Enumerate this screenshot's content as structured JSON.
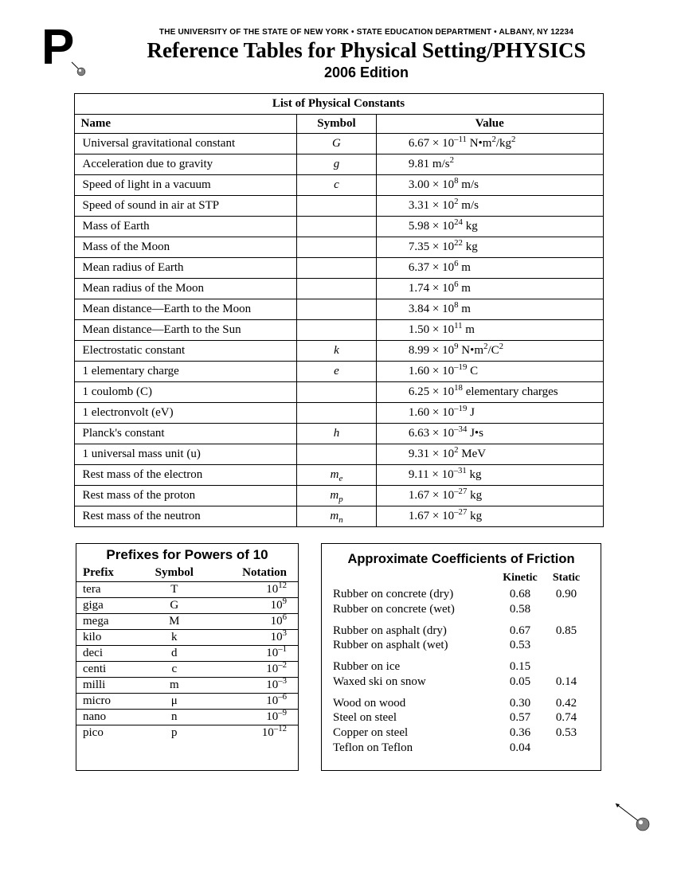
{
  "header": {
    "dept": "THE UNIVERSITY OF THE STATE OF NEW YORK • STATE EDUCATION DEPARTMENT • ALBANY, NY  12234",
    "title": "Reference Tables for Physical Setting/PHYSICS",
    "edition": "2006 Edition"
  },
  "constants": {
    "title": "List of Physical Constants",
    "columns": [
      "Name",
      "Symbol",
      "Value"
    ],
    "rows": [
      {
        "name": "Universal gravitational constant",
        "symbol": "G",
        "value": "6.67 × 10<span class='sup'>–11</span> N•m<span class='sup'>2</span>/kg<span class='sup'>2</span>"
      },
      {
        "name": "Acceleration due to gravity",
        "symbol": "g",
        "value": "9.81 m/s<span class='sup'>2</span>"
      },
      {
        "name": "Speed of light in a vacuum",
        "symbol": "c",
        "value": "3.00 × 10<span class='sup'>8</span> m/s"
      },
      {
        "name": "Speed of sound in air at STP",
        "symbol": "",
        "value": "3.31 × 10<span class='sup'>2</span> m/s"
      },
      {
        "name": "Mass of Earth",
        "symbol": "",
        "value": "5.98 × 10<span class='sup'>24</span> kg"
      },
      {
        "name": "Mass of the Moon",
        "symbol": "",
        "value": "7.35 × 10<span class='sup'>22</span> kg"
      },
      {
        "name": "Mean radius of Earth",
        "symbol": "",
        "value": "6.37 × 10<span class='sup'>6</span> m"
      },
      {
        "name": "Mean radius of the Moon",
        "symbol": "",
        "value": "1.74 × 10<span class='sup'>6</span> m"
      },
      {
        "name": "Mean distance—Earth to the Moon",
        "symbol": "",
        "value": "3.84 × 10<span class='sup'>8</span> m"
      },
      {
        "name": "Mean distance—Earth to the Sun",
        "symbol": "",
        "value": "1.50 × 10<span class='sup'>11</span> m"
      },
      {
        "name": "Electrostatic constant",
        "symbol": "k",
        "value": "8.99 × 10<span class='sup'>9</span> N•m<span class='sup'>2</span>/C<span class='sup'>2</span>"
      },
      {
        "name": "1 elementary charge",
        "symbol": "e",
        "value": "1.60 × 10<span class='sup'>–19</span> C"
      },
      {
        "name": "1 coulomb (C)",
        "symbol": "",
        "value": "6.25 × 10<span class='sup'>18</span> elementary charges"
      },
      {
        "name": "1 electronvolt (eV)",
        "symbol": "",
        "value": "1.60 × 10<span class='sup'>–19</span> J"
      },
      {
        "name": "Planck's constant",
        "symbol": "h",
        "value": "6.63 × 10<span class='sup'>–34</span> J•s"
      },
      {
        "name": "1 universal mass unit (u)",
        "symbol": "",
        "value": "9.31 × 10<span class='sup'>2</span> MeV"
      },
      {
        "name": "Rest mass of the electron",
        "symbol": "m<span class='sub'>e</span>",
        "value": "9.11 × 10<span class='sup'>–31</span> kg"
      },
      {
        "name": "Rest mass of the proton",
        "symbol": "m<span class='sub'>p</span>",
        "value": "1.67 × 10<span class='sup'>–27</span> kg"
      },
      {
        "name": "Rest mass of the neutron",
        "symbol": "m<span class='sub'>n</span>",
        "value": "1.67 × 10<span class='sup'>–27</span> kg"
      }
    ]
  },
  "prefixes": {
    "title": "Prefixes for Powers of 10",
    "columns": [
      "Prefix",
      "Symbol",
      "Notation"
    ],
    "rows": [
      {
        "prefix": "tera",
        "symbol": "T",
        "notation": "10<span class='sup'>12</span>"
      },
      {
        "prefix": "giga",
        "symbol": "G",
        "notation": "10<span class='sup'>9</span>"
      },
      {
        "prefix": "mega",
        "symbol": "M",
        "notation": "10<span class='sup'>6</span>"
      },
      {
        "prefix": "kilo",
        "symbol": "k",
        "notation": "10<span class='sup'>3</span>"
      },
      {
        "prefix": "deci",
        "symbol": "d",
        "notation": "10<span class='sup'>–1</span>"
      },
      {
        "prefix": "centi",
        "symbol": "c",
        "notation": "10<span class='sup'>–2</span>"
      },
      {
        "prefix": "milli",
        "symbol": "m",
        "notation": "10<span class='sup'>–3</span>"
      },
      {
        "prefix": "micro",
        "symbol": "μ",
        "notation": "10<span class='sup'>–6</span>"
      },
      {
        "prefix": "nano",
        "symbol": "n",
        "notation": "10<span class='sup'>–9</span>"
      },
      {
        "prefix": "pico",
        "symbol": "p",
        "notation": "10<span class='sup'>–12</span>"
      }
    ]
  },
  "friction": {
    "title": "Approximate Coefficients of Friction",
    "columns": [
      "",
      "Kinetic",
      "Static"
    ],
    "groups": [
      [
        {
          "name": "Rubber on concrete (dry)",
          "k": "0.68",
          "s": "0.90"
        },
        {
          "name": "Rubber on concrete (wet)",
          "k": "0.58",
          "s": ""
        }
      ],
      [
        {
          "name": "Rubber on asphalt (dry)",
          "k": "0.67",
          "s": "0.85"
        },
        {
          "name": "Rubber on asphalt (wet)",
          "k": "0.53",
          "s": ""
        }
      ],
      [
        {
          "name": "Rubber on ice",
          "k": "0.15",
          "s": ""
        },
        {
          "name": "Waxed ski on snow",
          "k": "0.05",
          "s": "0.14"
        }
      ],
      [
        {
          "name": "Wood on wood",
          "k": "0.30",
          "s": "0.42"
        },
        {
          "name": "Steel on steel",
          "k": "0.57",
          "s": "0.74"
        },
        {
          "name": "Copper on steel",
          "k": "0.36",
          "s": "0.53"
        },
        {
          "name": "Teflon on Teflon",
          "k": "0.04",
          "s": ""
        }
      ]
    ]
  },
  "styling": {
    "page_bg": "#ffffff",
    "text_color": "#000000",
    "border_color": "#000000",
    "border_width_outer": 1.5,
    "border_width_inner": 1,
    "font_body": "Times New Roman / Georgia, serif",
    "font_headings": "Arial / Helvetica, sans-serif",
    "title_fontsize": 27,
    "edition_fontsize": 18,
    "dept_fontsize": 10,
    "section_title_fontsize": 20,
    "body_fontsize": 15,
    "logo_colors": {
      "P": "#000000",
      "ball": "#808080",
      "ball_highlight": "#ffffff"
    }
  }
}
